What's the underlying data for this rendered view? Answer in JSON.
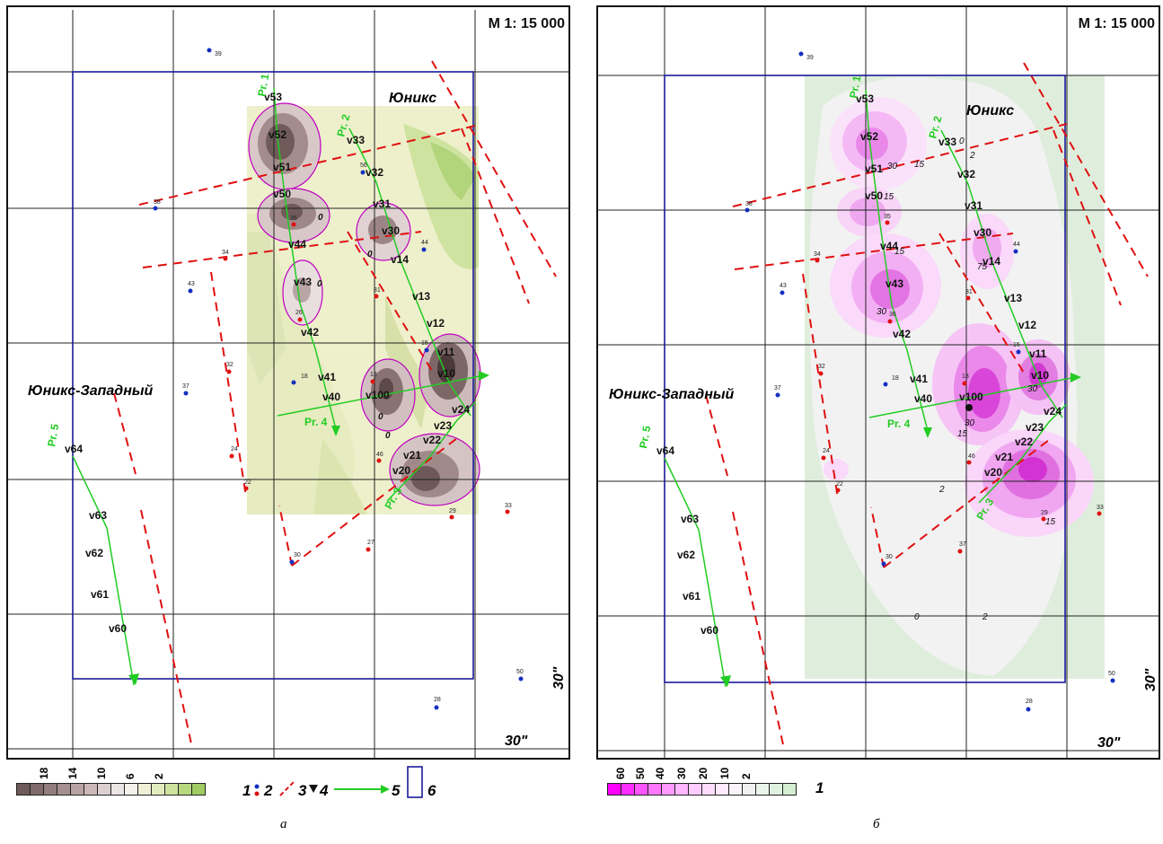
{
  "panel_a": {
    "scale": "M 1: 15 000",
    "area_labels": {
      "unix": "Юникс",
      "unix_west": "Юникс-Западный"
    },
    "profiles": [
      "Pr. 1",
      "Pr. 2",
      "Pr. 3",
      "Pr. 4",
      "Pr. 5"
    ],
    "stations": [
      "v53",
      "v52",
      "v51",
      "v50",
      "v44",
      "v43",
      "v42",
      "v41",
      "v40",
      "v33",
      "v32",
      "v31",
      "v30",
      "v14",
      "v13",
      "v12",
      "v11",
      "v10",
      "v100",
      "v24",
      "v23",
      "v22",
      "v21",
      "v20",
      "v64",
      "v63",
      "v62",
      "v61",
      "v60"
    ],
    "contour_labels": [
      "0",
      "0",
      "0",
      "0",
      "0"
    ],
    "well_labels": [
      "39",
      "38",
      "34",
      "43",
      "37",
      "32",
      "18",
      "36",
      "26",
      "31",
      "13",
      "24",
      "22",
      "30",
      "27",
      "28",
      "33",
      "44",
      "15",
      "50",
      "56",
      "46",
      "29"
    ],
    "grid_label_x": "30\"",
    "grid_label_y": "30\"",
    "legend": {
      "scale_values": [
        "18",
        "14",
        "10",
        "6",
        "2"
      ],
      "colors": [
        "#6e5a5a",
        "#806a6a",
        "#947d7d",
        "#a68f8f",
        "#b9a3a3",
        "#cdb8b8",
        "#ddd0d0",
        "#ebe5e5",
        "#f3f1ea",
        "#eef0d8",
        "#e3ecbf",
        "#cfe3a0",
        "#b8d880",
        "#9fcb62"
      ],
      "items": [
        "1",
        "2",
        "3",
        "4",
        "5",
        "6"
      ]
    },
    "caption": "а"
  },
  "panel_b": {
    "scale": "M 1: 15 000",
    "area_labels": {
      "unix": "Юникс",
      "unix_west": "Юникс-Западный"
    },
    "profiles": [
      "Pr. 1",
      "Pr. 2",
      "Pr. 3",
      "Pr. 4",
      "Pr. 5"
    ],
    "stations": [
      "v53",
      "v52",
      "v51",
      "v50",
      "v44",
      "v43",
      "v42",
      "v41",
      "v40",
      "v33",
      "v32",
      "v31",
      "v30",
      "v14",
      "v13",
      "v12",
      "v11",
      "v10",
      "v100",
      "v24",
      "v23",
      "v22",
      "v21",
      "v20",
      "v64",
      "v63",
      "v62",
      "v61",
      "v60"
    ],
    "contour_labels": [
      "0",
      "2",
      "15",
      "30",
      "15",
      "2",
      "0",
      "2",
      "30",
      "15",
      "15",
      "30",
      "75",
      "15",
      "30"
    ],
    "well_labels": [
      "39",
      "38",
      "34",
      "43",
      "37",
      "32",
      "18",
      "35",
      "36",
      "31",
      "13",
      "24",
      "22",
      "30",
      "37",
      "28",
      "33",
      "44",
      "15",
      "50",
      "46",
      "29"
    ],
    "grid_label_x": "30\"",
    "grid_label_y": "30\"",
    "legend": {
      "scale_values": [
        "60",
        "50",
        "40",
        "30",
        "20",
        "10",
        "2"
      ],
      "colors": [
        "#ff00ff",
        "#ff2cff",
        "#ff55ff",
        "#ff77ff",
        "#ff99ff",
        "#ffb5ff",
        "#ffccff",
        "#ffdcff",
        "#ffeaff",
        "#fbf3fb",
        "#f1f1f1",
        "#eaf5ea",
        "#dff2df",
        "#d3eed3"
      ],
      "items": [
        "1"
      ]
    },
    "caption": "б"
  }
}
